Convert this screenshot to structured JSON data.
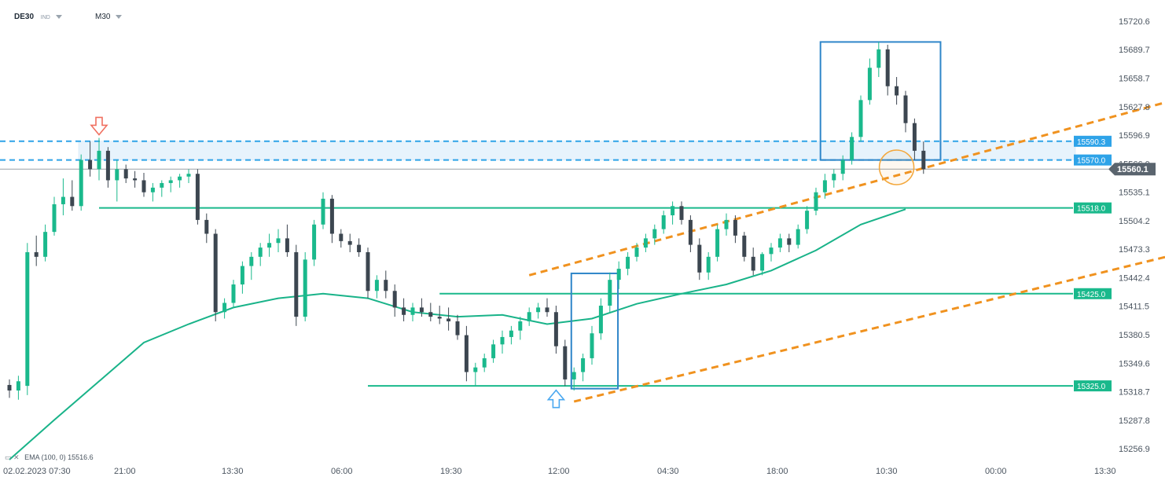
{
  "header": {
    "symbol": "DE30",
    "instrument_type": "IND",
    "timeframe": "M30"
  },
  "indicator": {
    "label": "EMA (100, 0)",
    "value": "15516.6",
    "color": "#19b389"
  },
  "colors": {
    "bull": "#1ab98c",
    "bear": "#3c4650",
    "level": "#1ab98c",
    "zone": "#2ea3e8",
    "channel": "#f0921f",
    "box": "#2f86c9",
    "price": "#5a646e",
    "arrow_down": "#f07060",
    "arrow_up": "#4aa8f0",
    "circle": "#f3a73b"
  },
  "chart_data": {
    "type": "candlestick",
    "title": "",
    "xlabel": "",
    "ylabel": "",
    "ylim": [
      15245,
      15735
    ],
    "y_ticks": [
      "15720.6",
      "15689.7",
      "15658.7",
      "15627.8",
      "15596.9",
      "15566.0",
      "15535.1",
      "15504.2",
      "15473.3",
      "15442.4",
      "15411.5",
      "15380.5",
      "15349.6",
      "15318.7",
      "15287.8",
      "15256.9"
    ],
    "x_ticks": [
      "02.02.2023 07:30",
      "21:00",
      "13:30",
      "06:00",
      "19:30",
      "12:00",
      "04:30",
      "18:00",
      "10:30",
      "00:00",
      "13:30"
    ],
    "current_price": "15560.1",
    "levels": [
      {
        "label": "15590.3",
        "value": 15590.3,
        "style": "dashed"
      },
      {
        "label": "15570.0",
        "value": 15570.0,
        "style": "dashed"
      },
      {
        "label": "15518.0",
        "value": 15518.0,
        "style": "solid"
      },
      {
        "label": "15425.0",
        "value": 15425.0,
        "style": "solid"
      },
      {
        "label": "15325.0",
        "value": 15325.0,
        "style": "solid"
      }
    ],
    "resistance_zone": [
      15570.0,
      15590.3
    ],
    "channel": [
      {
        "line": "upper",
        "from": [
          58,
          15445
        ],
        "to": [
          169,
          15738
        ]
      },
      {
        "line": "lower",
        "from": [
          63,
          15308
        ],
        "to": [
          188,
          15605
        ]
      }
    ],
    "highlight_boxes": [
      {
        "x": [
          62.7,
          67.9
        ],
        "y": [
          15322,
          15447
        ]
      },
      {
        "x": [
          90.5,
          103.9
        ],
        "y": [
          15570,
          15698
        ]
      }
    ],
    "markers": [
      {
        "type": "arrow-down",
        "bar": 10,
        "price": 15594
      },
      {
        "type": "arrow-up",
        "bar": 61,
        "price": 15322
      },
      {
        "type": "circle",
        "bar": 99,
        "price": 15562
      }
    ],
    "ema": [
      [
        0,
        15245
      ],
      [
        5,
        15288
      ],
      [
        10,
        15330
      ],
      [
        15,
        15372
      ],
      [
        20,
        15392
      ],
      [
        25,
        15410
      ],
      [
        30,
        15420
      ],
      [
        35,
        15425
      ],
      [
        40,
        15420
      ],
      [
        45,
        15405
      ],
      [
        50,
        15400
      ],
      [
        55,
        15402
      ],
      [
        60,
        15392
      ],
      [
        65,
        15398
      ],
      [
        70,
        15414
      ],
      [
        75,
        15425
      ],
      [
        80,
        15435
      ],
      [
        85,
        15450
      ],
      [
        90,
        15472
      ],
      [
        95,
        15500
      ],
      [
        100,
        15516.6
      ]
    ],
    "candles_ohlc": [
      [
        15326,
        15332,
        15312,
        15320
      ],
      [
        15320,
        15336,
        15310,
        15330
      ],
      [
        15325,
        15480,
        15315,
        15470
      ],
      [
        15470,
        15488,
        15455,
        15465
      ],
      [
        15465,
        15500,
        15460,
        15492
      ],
      [
        15492,
        15530,
        15488,
        15522
      ],
      [
        15522,
        15550,
        15510,
        15530
      ],
      [
        15530,
        15548,
        15515,
        15520
      ],
      [
        15520,
        15576,
        15515,
        15570
      ],
      [
        15570,
        15590,
        15552,
        15560
      ],
      [
        15560,
        15594,
        15548,
        15580
      ],
      [
        15580,
        15584,
        15540,
        15548
      ],
      [
        15548,
        15570,
        15525,
        15560
      ],
      [
        15560,
        15565,
        15545,
        15550
      ],
      [
        15550,
        15558,
        15540,
        15548
      ],
      [
        15548,
        15556,
        15530,
        15535
      ],
      [
        15535,
        15545,
        15525,
        15540
      ],
      [
        15540,
        15548,
        15530,
        15545
      ],
      [
        15545,
        15552,
        15535,
        15548
      ],
      [
        15548,
        15555,
        15540,
        15552
      ],
      [
        15552,
        15560,
        15545,
        15555
      ],
      [
        15555,
        15560,
        15500,
        15505
      ],
      [
        15505,
        15512,
        15480,
        15490
      ],
      [
        15490,
        15495,
        15395,
        15405
      ],
      [
        15405,
        15420,
        15398,
        15415
      ],
      [
        15415,
        15440,
        15410,
        15435
      ],
      [
        15435,
        15460,
        15425,
        15455
      ],
      [
        15455,
        15470,
        15440,
        15465
      ],
      [
        15465,
        15480,
        15455,
        15475
      ],
      [
        15475,
        15490,
        15465,
        15480
      ],
      [
        15480,
        15495,
        15470,
        15485
      ],
      [
        15485,
        15500,
        15465,
        15470
      ],
      [
        15470,
        15478,
        15390,
        15400
      ],
      [
        15400,
        15470,
        15395,
        15462
      ],
      [
        15462,
        15505,
        15455,
        15500
      ],
      [
        15500,
        15535,
        15495,
        15528
      ],
      [
        15528,
        15532,
        15480,
        15490
      ],
      [
        15490,
        15495,
        15475,
        15482
      ],
      [
        15482,
        15490,
        15470,
        15478
      ],
      [
        15478,
        15485,
        15465,
        15470
      ],
      [
        15470,
        15475,
        15420,
        15428
      ],
      [
        15428,
        15445,
        15420,
        15440
      ],
      [
        15440,
        15450,
        15420,
        15428
      ],
      [
        15428,
        15435,
        15400,
        15410
      ],
      [
        15410,
        15420,
        15395,
        15402
      ],
      [
        15402,
        15415,
        15395,
        15410
      ],
      [
        15410,
        15420,
        15400,
        15405
      ],
      [
        15405,
        15415,
        15395,
        15400
      ],
      [
        15400,
        15412,
        15392,
        15398
      ],
      [
        15398,
        15410,
        15385,
        15395
      ],
      [
        15395,
        15402,
        15375,
        15380
      ],
      [
        15380,
        15390,
        15330,
        15340
      ],
      [
        15340,
        15350,
        15325,
        15345
      ],
      [
        15345,
        15360,
        15340,
        15355
      ],
      [
        15355,
        15375,
        15350,
        15370
      ],
      [
        15370,
        15385,
        15360,
        15378
      ],
      [
        15378,
        15390,
        15370,
        15385
      ],
      [
        15385,
        15400,
        15375,
        15395
      ],
      [
        15395,
        15410,
        15390,
        15405
      ],
      [
        15405,
        15415,
        15398,
        15410
      ],
      [
        15410,
        15420,
        15400,
        15405
      ],
      [
        15405,
        15412,
        15360,
        15368
      ],
      [
        15368,
        15375,
        15325,
        15332
      ],
      [
        15332,
        15345,
        15320,
        15340
      ],
      [
        15340,
        15360,
        15330,
        15355
      ],
      [
        15355,
        15390,
        15348,
        15382
      ],
      [
        15382,
        15420,
        15375,
        15412
      ],
      [
        15412,
        15448,
        15405,
        15440
      ],
      [
        15440,
        15460,
        15430,
        15452
      ],
      [
        15452,
        15470,
        15445,
        15465
      ],
      [
        15465,
        15480,
        15460,
        15475
      ],
      [
        15475,
        15490,
        15470,
        15485
      ],
      [
        15485,
        15500,
        15478,
        15495
      ],
      [
        15495,
        15515,
        15490,
        15510
      ],
      [
        15510,
        15525,
        15500,
        15520
      ],
      [
        15520,
        15525,
        15500,
        15505
      ],
      [
        15505,
        15510,
        15470,
        15478
      ],
      [
        15478,
        15485,
        15440,
        15448
      ],
      [
        15448,
        15470,
        15440,
        15465
      ],
      [
        15465,
        15500,
        15460,
        15495
      ],
      [
        15495,
        15512,
        15488,
        15505
      ],
      [
        15505,
        15510,
        15480,
        15488
      ],
      [
        15488,
        15492,
        15460,
        15465
      ],
      [
        15465,
        15475,
        15445,
        15450
      ],
      [
        15450,
        15470,
        15445,
        15468
      ],
      [
        15468,
        15480,
        15460,
        15475
      ],
      [
        15475,
        15490,
        15470,
        15485
      ],
      [
        15485,
        15490,
        15470,
        15478
      ],
      [
        15478,
        15500,
        15474,
        15495
      ],
      [
        15495,
        15520,
        15490,
        15515
      ],
      [
        15515,
        15540,
        15510,
        15535
      ],
      [
        15535,
        15555,
        15528,
        15548
      ],
      [
        15548,
        15560,
        15540,
        15555
      ],
      [
        15555,
        15575,
        15548,
        15570
      ],
      [
        15570,
        15600,
        15565,
        15595
      ],
      [
        15595,
        15640,
        15590,
        15635
      ],
      [
        15635,
        15680,
        15630,
        15670
      ],
      [
        15670,
        15698,
        15660,
        15690
      ],
      [
        15690,
        15695,
        15640,
        15650
      ],
      [
        15650,
        15660,
        15630,
        15640
      ],
      [
        15640,
        15645,
        15600,
        15610
      ],
      [
        15610,
        15615,
        15570,
        15580
      ],
      [
        15580,
        15590,
        15555,
        15560
      ]
    ]
  }
}
